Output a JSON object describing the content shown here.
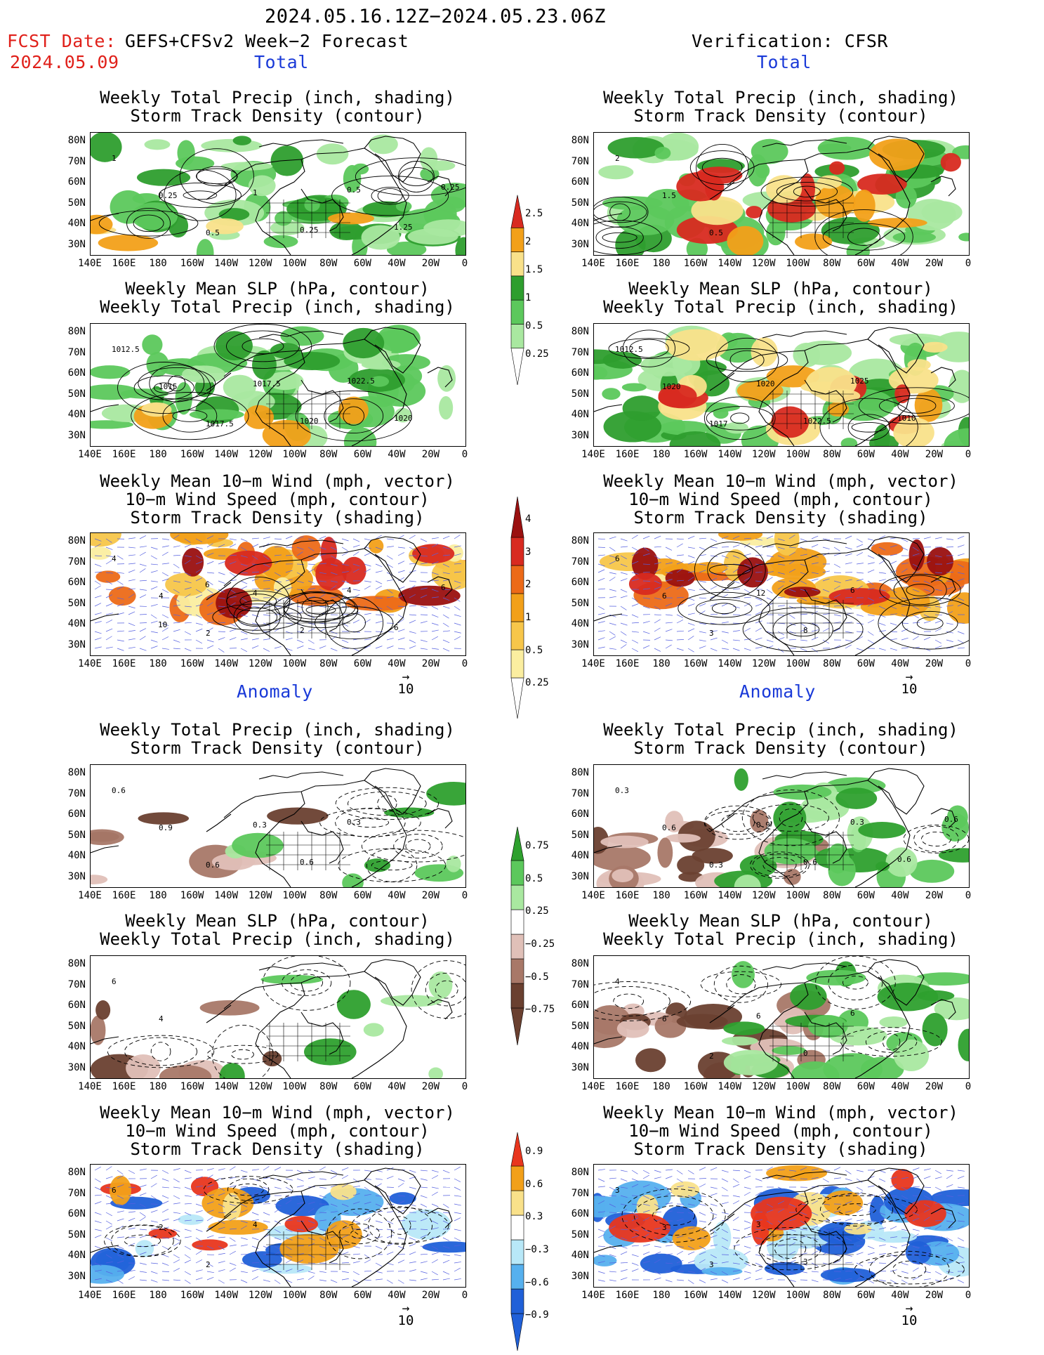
{
  "header": {
    "period": "2024.05.16.12Z−2024.05.23.06Z",
    "fcst_date_label": "FCST Date:",
    "fcst_title": "GEFS+CFSv2 Week−2 Forecast",
    "fcst_date": "2024.05.09",
    "verification": "Verification: CFSR"
  },
  "sections": {
    "total": "Total",
    "anomaly": "Anomaly"
  },
  "panel_titles": {
    "precip_storm": "Weekly Total Precip (inch, shading)\nStorm Track Density (contour)",
    "slp_precip": "Weekly Mean SLP (hPa, contour)\nWeekly Total Precip (inch, shading)",
    "wind": "Weekly Mean 10−m Wind (mph, vector)\n10−m Wind Speed (mph, contour)\nStorm Track Density (shading)"
  },
  "axes": {
    "lat_labels": [
      "80N",
      "70N",
      "60N",
      "50N",
      "40N",
      "30N"
    ],
    "lon_labels": [
      "140E",
      "160E",
      "180",
      "160W",
      "140W",
      "120W",
      "100W",
      "80W",
      "60W",
      "40W",
      "20W",
      "0"
    ]
  },
  "vector_reference": "10",
  "colorbars": {
    "precip_total": {
      "labels": [
        "2.5",
        "2",
        "1.5",
        "1",
        "0.5",
        "0.25"
      ],
      "colors": [
        "#d82a20",
        "#f2a019",
        "#f9e18a",
        "#2e9e2e",
        "#5cc85c",
        "#a9e8a0"
      ]
    },
    "storm_total": {
      "labels": [
        "4",
        "3",
        "2",
        "1",
        "0.5",
        "0.25"
      ],
      "colors": [
        "#9a1010",
        "#d82a20",
        "#ec6a18",
        "#f2a019",
        "#f7c64a",
        "#fbeea0"
      ]
    },
    "precip_anom": {
      "labels": [
        "0.75",
        "0.5",
        "0.25",
        "−0.25",
        "−0.5",
        "−0.75"
      ],
      "colors": [
        "#2ea02e",
        "#5cc85c",
        "#a9e8a0",
        "#ffffff",
        "#e0c0b8",
        "#a87868",
        "#6a4030"
      ]
    },
    "storm_anom": {
      "labels": [
        "0.9",
        "0.6",
        "0.3",
        "−0.3",
        "−0.6",
        "−0.9"
      ],
      "colors": [
        "#e8361e",
        "#f2a019",
        "#f9e18a",
        "#ffffff",
        "#b8e8f8",
        "#56b0ee",
        "#2060d8"
      ]
    }
  },
  "panel_annotations": {
    "fcst_total_precip": [
      "1",
      "0.25",
      "0.5",
      "1",
      "0.25",
      "0.5",
      "1.25",
      "0.25"
    ],
    "fcst_total_slp": [
      "1012.5",
      "1015",
      "1017.5",
      "1017.5",
      "1020",
      "1022.5",
      "1020"
    ],
    "fcst_total_wind": [
      "4",
      "4",
      "2",
      "4",
      "2",
      "4",
      "6",
      "6",
      "10",
      "6"
    ],
    "obs_total_precip": [
      "2",
      "1.5",
      "0.5"
    ],
    "obs_total_slp": [
      "1012.5",
      "1020",
      "1017",
      "1020",
      "1022.5",
      "1025",
      "1010"
    ],
    "obs_total_wind": [
      "6",
      "6",
      "3",
      "12",
      "8",
      "6"
    ],
    "fcst_anom_precip": [
      "0.6",
      "0.9",
      "0.6",
      "0.3",
      "0.6",
      "0.3"
    ],
    "fcst_anom_slp": [
      "6",
      "4"
    ],
    "fcst_anom_wind": [
      "6",
      "2",
      "2",
      "4"
    ],
    "obs_anom_precip": [
      "0.3",
      "0.6",
      "0.3",
      "0.9",
      "0.6",
      "0.3",
      "0.6",
      "0.6"
    ],
    "obs_anom_slp": [
      "4",
      "6",
      "2",
      "6",
      "0",
      "6"
    ],
    "obs_anom_wind": [
      "3",
      "3",
      "3",
      "3",
      "3"
    ]
  }
}
